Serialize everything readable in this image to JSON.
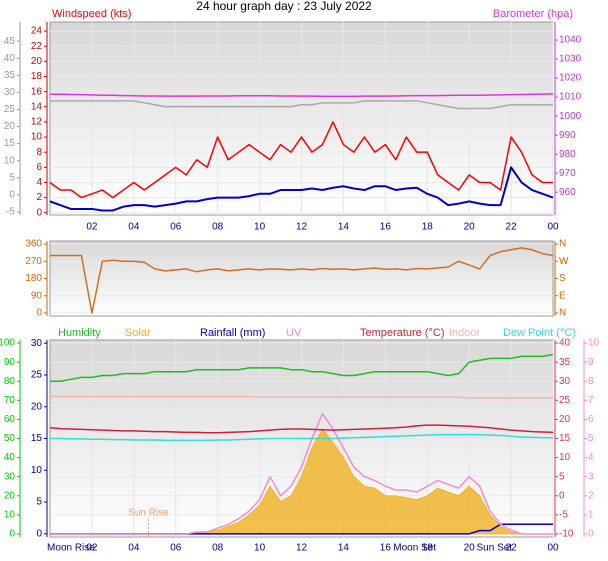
{
  "chart_data": [
    {
      "type": "line",
      "title": "24 hour graph day : 23 July 2022",
      "x": [
        0,
        0.5,
        1,
        1.5,
        2,
        2.5,
        3,
        3.5,
        4,
        4.5,
        5,
        5.5,
        6,
        6.5,
        7,
        7.5,
        8,
        8.5,
        9,
        9.5,
        10,
        10.5,
        11,
        11.5,
        12,
        12.5,
        13,
        13.5,
        14,
        14.5,
        15,
        15.5,
        16,
        16.5,
        17,
        17.5,
        18,
        18.5,
        19,
        19.5,
        20,
        20.5,
        21,
        21.5,
        22,
        22.5,
        23,
        23.5,
        24
      ],
      "xlim": [
        0,
        24
      ],
      "xticks": [
        {
          "value": 2,
          "label": "02"
        },
        {
          "value": 4,
          "label": "04"
        },
        {
          "value": 6,
          "label": "06"
        },
        {
          "value": 8,
          "label": "08"
        },
        10,
        12,
        14,
        16,
        18,
        20,
        22,
        {
          "value": 24,
          "label": "00"
        }
      ],
      "ylim": [
        -0.3,
        25.2
      ],
      "yticks": [
        0,
        2,
        4,
        6,
        8,
        10,
        12,
        14,
        16,
        18,
        20,
        22,
        24
      ],
      "y2lim": [
        948,
        1049.5
      ],
      "y2ticks": [
        960,
        970,
        980,
        990,
        1000,
        1010,
        1020,
        1030,
        1040
      ],
      "y3lim": [
        -5.9,
        50.6
      ],
      "y3ticks": [
        -5,
        0,
        5,
        10,
        15,
        20,
        25,
        30,
        35,
        40,
        45
      ],
      "axis_colors": {
        "y": "#cc0000",
        "y2": "#cc33cc",
        "y3": "#999999"
      },
      "grid": true,
      "series": [
        {
          "name": "Windspeed (kts)",
          "color": "#ff0000",
          "values": [
            4,
            3,
            3,
            2,
            2.5,
            3,
            2,
            3,
            4,
            3,
            4,
            5,
            6,
            5,
            7,
            6,
            10,
            7,
            8,
            9,
            8,
            7,
            9,
            8,
            10,
            8,
            9,
            12,
            9,
            8,
            10,
            8,
            9,
            7,
            10,
            8,
            8,
            5,
            4,
            3,
            5,
            4,
            4,
            3,
            10,
            8,
            5,
            4,
            4
          ]
        },
        {
          "color": "#0000cc",
          "values": [
            1.5,
            1,
            0.5,
            0.5,
            0.5,
            0.3,
            0.3,
            0.8,
            1,
            1,
            0.8,
            1,
            1.2,
            1.5,
            1.5,
            1.8,
            2,
            2,
            2,
            2.2,
            2.5,
            2.5,
            3,
            3,
            3,
            3.2,
            3,
            3.3,
            3.5,
            3.2,
            3,
            3.5,
            3.5,
            3,
            3.2,
            3.3,
            2.5,
            2,
            1,
            1.2,
            1.5,
            1.2,
            1,
            1,
            6,
            4,
            3,
            2.5,
            2
          ]
        },
        {
          "name": "Barometer (hpa)",
          "axis": "y2",
          "color": "#dd33dd",
          "values": [
            1011.5,
            1011.5,
            1011.4,
            1011.3,
            1011.2,
            1011,
            1011,
            1010.8,
            1010.7,
            1010.6,
            1010.6,
            1010.5,
            1010.5,
            1010.5,
            1010.5,
            1010.6,
            1010.6,
            1010.6,
            1010.7,
            1010.7,
            1010.7,
            1010.7,
            1010.6,
            1010.6,
            1010.5,
            1010.5,
            1010.4,
            1010.4,
            1010.4,
            1010.4,
            1010.5,
            1010.5,
            1010.5,
            1010.6,
            1010.7,
            1010.8,
            1010.8,
            1010.8,
            1010.9,
            1011,
            1011,
            1011,
            1011.1,
            1011.2,
            1011.3,
            1011.4,
            1011.5,
            1011.6,
            1011.7
          ]
        },
        {
          "axis": "y2",
          "color": "#aaaaaa",
          "values": [
            1008,
            1008,
            1008,
            1008,
            1008,
            1008,
            1008,
            1008,
            1008,
            1007,
            1006,
            1005,
            1005,
            1005,
            1005,
            1005,
            1005,
            1005,
            1005,
            1005,
            1005,
            1005,
            1005,
            1005,
            1006,
            1006,
            1007,
            1007,
            1007,
            1007,
            1008,
            1008,
            1008,
            1008,
            1008,
            1008,
            1007,
            1006,
            1005,
            1004,
            1004,
            1004,
            1004,
            1005,
            1006,
            1006,
            1006,
            1006,
            1006
          ]
        }
      ]
    },
    {
      "type": "line",
      "x": [
        0,
        0.5,
        1,
        1.5,
        2,
        2.5,
        3,
        3.5,
        4,
        4.5,
        5,
        5.5,
        6,
        6.5,
        7,
        7.5,
        8,
        8.5,
        9,
        9.5,
        10,
        10.5,
        11,
        11.5,
        12,
        12.5,
        13,
        13.5,
        14,
        14.5,
        15,
        15.5,
        16,
        16.5,
        17,
        17.5,
        18,
        18.5,
        19,
        19.5,
        20,
        20.5,
        21,
        21.5,
        22,
        22.5,
        23,
        23.5,
        24
      ],
      "xlim": [
        0,
        24
      ],
      "ylim": [
        -15.6,
        375.6
      ],
      "yticks": [
        0,
        90,
        180,
        270,
        360
      ],
      "y2lim": [
        -15.6,
        375.6
      ],
      "y2ticks": [
        {
          "value": 0,
          "label": "N"
        },
        {
          "value": 90,
          "label": "E"
        },
        {
          "value": 180,
          "label": "S"
        },
        {
          "value": 270,
          "label": "W"
        },
        {
          "value": 360,
          "label": "N"
        }
      ],
      "axis_colors": {
        "y": "#cc6600",
        "y2": "#cc6600"
      },
      "grid": true,
      "series": [
        {
          "color": "#d07020",
          "values": [
            300,
            300,
            300,
            300,
            0,
            270,
            275,
            270,
            270,
            265,
            230,
            220,
            225,
            230,
            215,
            225,
            230,
            220,
            225,
            230,
            225,
            230,
            228,
            225,
            230,
            225,
            232,
            228,
            230,
            225,
            230,
            235,
            228,
            230,
            225,
            232,
            230,
            235,
            240,
            270,
            250,
            230,
            300,
            320,
            330,
            340,
            330,
            310,
            300
          ]
        }
      ]
    },
    {
      "type": "line",
      "x": [
        0,
        0.5,
        1,
        1.5,
        2,
        2.5,
        3,
        3.5,
        4,
        4.5,
        5,
        5.5,
        6,
        6.5,
        7,
        7.5,
        8,
        8.5,
        9,
        9.5,
        10,
        10.5,
        11,
        11.5,
        12,
        12.5,
        13,
        13.5,
        14,
        14.5,
        15,
        15.5,
        16,
        16.5,
        17,
        17.5,
        18,
        18.5,
        19,
        19.5,
        20,
        20.5,
        21,
        21.5,
        22,
        22.5,
        23,
        23.5,
        24
      ],
      "xlim": [
        0,
        24
      ],
      "xticks": [
        {
          "value": 2,
          "label": "02"
        },
        {
          "value": 4,
          "label": "04"
        },
        {
          "value": 6,
          "label": "06"
        },
        {
          "value": 8,
          "label": "08"
        },
        10,
        12,
        14,
        16,
        18,
        20,
        22,
        {
          "value": 24,
          "label": "00"
        }
      ],
      "ylim": [
        -1.6,
        101.6
      ],
      "yticks": [
        0,
        10,
        20,
        30,
        40,
        50,
        60,
        70,
        80,
        90,
        100
      ],
      "y2lim": [
        -10.8,
        40.8
      ],
      "y2ticks": [
        -10,
        -5,
        0,
        5,
        10,
        15,
        20,
        25,
        30,
        35,
        40
      ],
      "y3lim": [
        -0.5,
        30.5
      ],
      "y3ticks": [
        0,
        5,
        10,
        15,
        20,
        25,
        30
      ],
      "y4lim": [
        -0.16,
        10.16
      ],
      "y4ticks": [
        0,
        1,
        2,
        3,
        4,
        5,
        6,
        7,
        8,
        9,
        10
      ],
      "axis_colors": {
        "y": "#00cc00",
        "y2": "#dd3355",
        "y3": "#000099",
        "y4": "#ff88cc"
      },
      "grid": true,
      "series": [
        {
          "name": "Humidity",
          "color": "#22bb22",
          "values": [
            80,
            80,
            81,
            82,
            82,
            83,
            83,
            84,
            84,
            84,
            85,
            85,
            85,
            85,
            86,
            86,
            86,
            86,
            86,
            87,
            87,
            87,
            87,
            86,
            86,
            85,
            85,
            84,
            83,
            83,
            84,
            85,
            85,
            85,
            85,
            85,
            85,
            84,
            83,
            84,
            90,
            91,
            92,
            92,
            92,
            93,
            93,
            93,
            94
          ]
        },
        {
          "name": "Solar",
          "axis": "y4",
          "style": "area",
          "color": "#f0b020",
          "values": [
            0,
            0,
            0,
            0,
            0,
            0,
            0,
            0,
            0,
            0,
            0,
            0,
            0,
            0,
            0.1,
            0.1,
            0.2,
            0.4,
            0.6,
            1,
            1.5,
            2.5,
            1.7,
            2,
            3,
            4.5,
            5.5,
            4.8,
            4,
            3,
            2.5,
            2.4,
            2,
            2,
            1.9,
            1.8,
            2,
            2.4,
            2.2,
            2,
            2.5,
            2,
            1,
            0.4,
            0.1,
            0,
            0,
            0,
            0
          ]
        },
        {
          "name": "Rainfall (mm)",
          "axis": "y3",
          "color": "#0000cc",
          "values": [
            0,
            0,
            0,
            0,
            0,
            0,
            0,
            0,
            0,
            0,
            0,
            0,
            0,
            0,
            0,
            0,
            0,
            0,
            0,
            0,
            0,
            0,
            0,
            0,
            0,
            0,
            0,
            0,
            0,
            0,
            0,
            0,
            0,
            0,
            0,
            0,
            0,
            0,
            0,
            0,
            0,
            0.5,
            0.5,
            1.5,
            1.5,
            1.5,
            1.5,
            1.5,
            1.5
          ]
        },
        {
          "name": "UV",
          "axis": "y4",
          "color": "#ff88cc",
          "values": [
            0,
            0,
            0,
            0,
            0,
            0,
            0,
            0,
            0,
            0,
            0,
            0,
            0,
            0,
            0.1,
            0.1,
            0.3,
            0.5,
            0.8,
            1.2,
            1.8,
            3,
            2,
            2.5,
            3.5,
            5,
            6.3,
            5.5,
            4.5,
            3.5,
            3,
            2.8,
            2.5,
            2.3,
            2.3,
            2.2,
            2.5,
            2.8,
            2.6,
            2.4,
            3,
            2.5,
            1.2,
            0.5,
            0.2,
            0,
            0,
            0,
            0
          ]
        },
        {
          "name": "Temperature (°C)",
          "axis": "y2",
          "color": "#cc2233",
          "values": [
            17.8,
            17.6,
            17.5,
            17.4,
            17.3,
            17.2,
            17.1,
            17,
            17,
            16.9,
            16.8,
            16.8,
            16.7,
            16.6,
            16.6,
            16.5,
            16.5,
            16.6,
            16.7,
            16.8,
            17,
            17.2,
            17.4,
            17.5,
            17.5,
            17.4,
            17.3,
            17.2,
            17.3,
            17.4,
            17.5,
            17.6,
            17.7,
            17.8,
            18,
            18.3,
            18.5,
            18.5,
            18.4,
            18.3,
            18.2,
            18,
            17.8,
            17.5,
            17.2,
            17,
            16.8,
            16.7,
            16.6
          ]
        },
        {
          "name": "Indoor",
          "axis": "y2",
          "color": "#f0b8a8",
          "values": [
            26,
            26,
            26,
            26,
            26,
            26,
            26,
            26,
            26,
            26,
            26,
            26,
            26,
            26,
            26,
            26,
            26,
            26,
            26,
            26,
            25.8,
            25.8,
            25.8,
            25.8,
            25.8,
            25.8,
            25.8,
            25.8,
            25.8,
            25.8,
            25.8,
            25.8,
            25.8,
            25.8,
            25.8,
            25.8,
            25.8,
            25.8,
            25.8,
            25.8,
            25.6,
            25.6,
            25.6,
            25.6,
            25.6,
            25.6,
            25.6,
            25.6,
            25.6
          ]
        },
        {
          "name": "Dew Point (°C)",
          "axis": "y2",
          "color": "#33dddd",
          "values": [
            15,
            15,
            14.9,
            14.9,
            14.8,
            14.8,
            14.7,
            14.7,
            14.6,
            14.6,
            14.6,
            14.5,
            14.5,
            14.5,
            14.5,
            14.5,
            14.6,
            14.6,
            14.7,
            14.8,
            14.9,
            15,
            15,
            15,
            15,
            15,
            15,
            15,
            15.1,
            15.2,
            15.3,
            15.4,
            15.5,
            15.6,
            15.7,
            15.8,
            15.9,
            16,
            16,
            16,
            16,
            16,
            15.9,
            15.8,
            15.6,
            15.4,
            15.3,
            15.2,
            15.2
          ]
        }
      ],
      "annotations": [
        {
          "text": "Moon Rise",
          "x": 1.0,
          "placement": "axis",
          "color": "#000099"
        },
        {
          "text": "Sun Rise",
          "x": 4.7,
          "placement": "inside",
          "color": "#e8a070"
        },
        {
          "text": "Moon Set",
          "x": 17.4,
          "placement": "axis",
          "color": "#000099"
        },
        {
          "text": "Sun Set",
          "x": 21.2,
          "placement": "axis",
          "color": "#000099"
        }
      ]
    }
  ]
}
